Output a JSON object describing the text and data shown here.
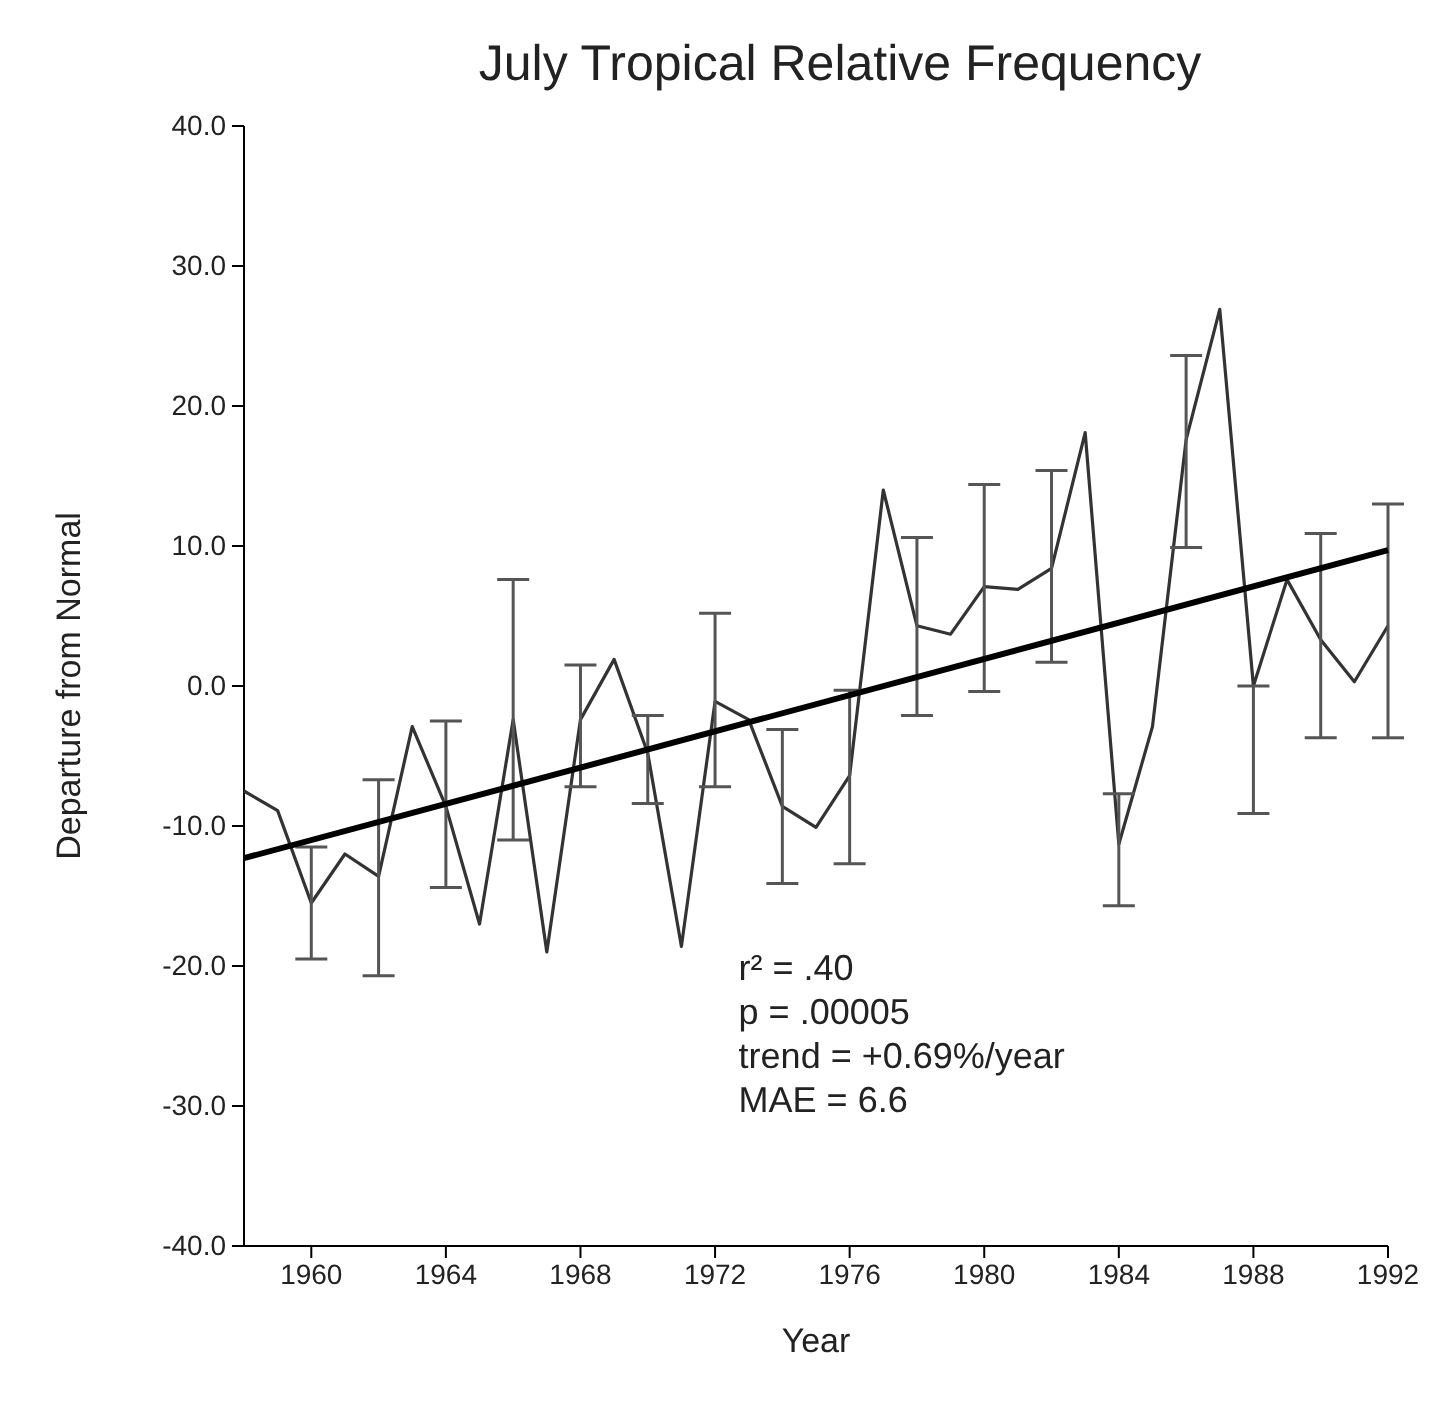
{
  "chart_data": {
    "type": "line",
    "title": "July Tropical Relative Frequency",
    "xlabel": "Year",
    "ylabel": "Departure from Normal",
    "x": [
      1958,
      1959,
      1960,
      1961,
      1962,
      1963,
      1964,
      1965,
      1966,
      1967,
      1968,
      1969,
      1970,
      1971,
      1972,
      1973,
      1974,
      1975,
      1976,
      1977,
      1978,
      1979,
      1980,
      1981,
      1982,
      1983,
      1984,
      1985,
      1986,
      1987,
      1988,
      1989,
      1990,
      1991,
      1992
    ],
    "series": [
      {
        "color": "#333333",
        "values": [
          -7.5,
          -8.9,
          -15.5,
          -12,
          -13.6,
          -2.9,
          -8.6,
          -17,
          -2.4,
          -19,
          -2.4,
          1.9,
          -4.8,
          -18.6,
          -1.1,
          -2.4,
          -8.6,
          -10.1,
          -6.4,
          14,
          4.3,
          3.7,
          7.1,
          6.9,
          8.4,
          18.1,
          -11.3,
          -2.9,
          17.6,
          26.9,
          0,
          7.6,
          3.3,
          0.3,
          4.3
        ],
        "errors": [
          null,
          null,
          [
            -19.5,
            -11.5
          ],
          null,
          [
            -20.7,
            -6.7
          ],
          null,
          [
            -14.4,
            -2.5
          ],
          null,
          [
            -11,
            7.6
          ],
          null,
          [
            -7.2,
            1.5
          ],
          null,
          [
            -8.4,
            -2.1
          ],
          null,
          [
            -7.2,
            5.2
          ],
          null,
          [
            -14.1,
            -3.1
          ],
          null,
          [
            -12.7,
            -0.3
          ],
          null,
          [
            -2.1,
            10.6
          ],
          null,
          [
            -0.4,
            14.4
          ],
          null,
          [
            1.7,
            15.4
          ],
          null,
          [
            -15.7,
            -7.7
          ],
          null,
          [
            9.9,
            23.6
          ],
          null,
          [
            -9.1,
            0
          ],
          null,
          [
            -3.7,
            10.9
          ],
          null,
          [
            -3.7,
            13
          ]
        ]
      },
      {
        "color": "#000000",
        "x": [
          1958,
          1992
        ],
        "values": [
          -12.3,
          9.7
        ]
      }
    ],
    "xlim": [
      1958,
      1992
    ],
    "xticks": [
      1960,
      1964,
      1968,
      1972,
      1976,
      1980,
      1984,
      1988,
      1992
    ],
    "ylim": [
      -40,
      40
    ],
    "yticks": [
      {
        "value": -40,
        "label": "-40.0"
      },
      {
        "value": -30,
        "label": "-30.0"
      },
      {
        "value": -20,
        "label": "-20.0"
      },
      {
        "value": -10,
        "label": "-10.0"
      },
      {
        "value": 0,
        "label": "0.0"
      },
      {
        "value": 10,
        "label": "10.0"
      },
      {
        "value": 20,
        "label": "20.0"
      },
      {
        "value": 30,
        "label": "30.0"
      },
      {
        "value": 40,
        "label": "40.0"
      }
    ],
    "annotations": [
      "r² = .40",
      "p = .00005",
      "trend = +0.69%/year",
      "MAE = 6.6"
    ],
    "marker": "none",
    "grid": false
  }
}
